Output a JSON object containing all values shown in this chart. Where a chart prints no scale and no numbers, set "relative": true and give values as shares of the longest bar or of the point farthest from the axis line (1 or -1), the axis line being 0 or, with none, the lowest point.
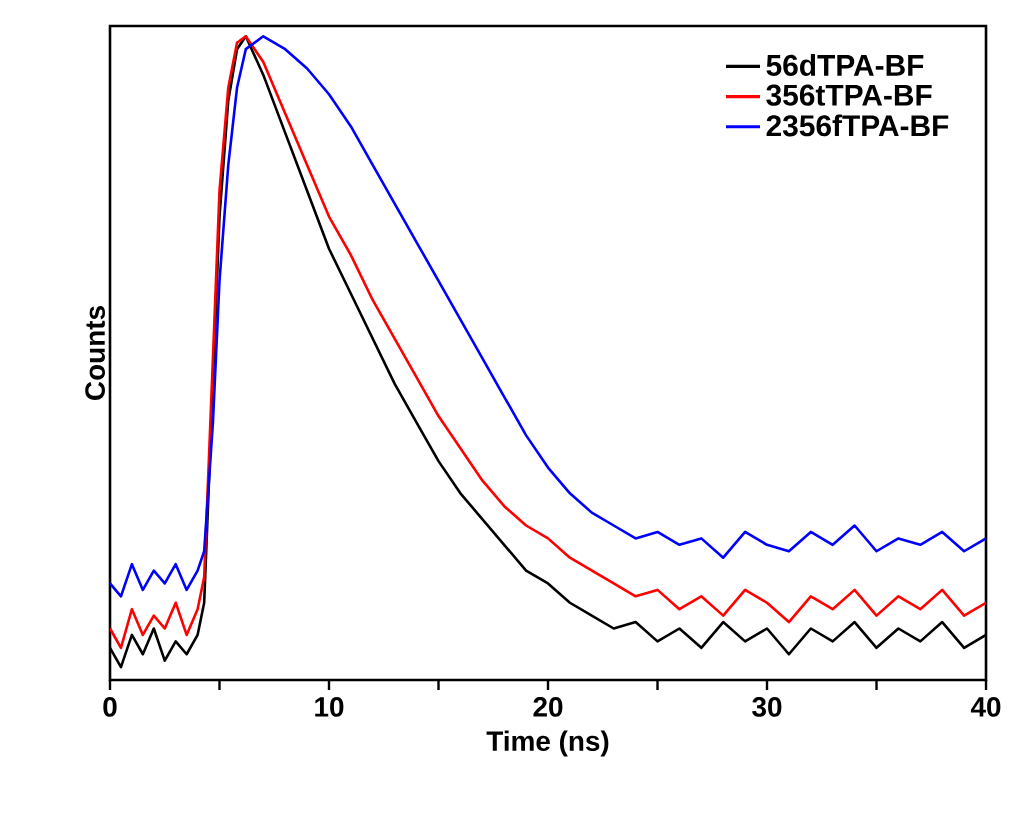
{
  "chart_data": {
    "type": "line",
    "xlabel": "Time (ns)",
    "ylabel": "Counts",
    "relative": true,
    "xlim": [
      0,
      40
    ],
    "xticks": [
      0,
      {
        "value": 5,
        "label": null
      },
      10,
      {
        "value": 15,
        "label": null
      },
      20,
      {
        "value": 25,
        "label": null
      },
      30,
      {
        "value": 35,
        "label": null
      },
      40
    ],
    "x": [
      0,
      0.5,
      1,
      1.5,
      2,
      2.5,
      3,
      3.5,
      4,
      4.3,
      4.7,
      5.0,
      5.4,
      5.8,
      6.2,
      7,
      8,
      9,
      10,
      11,
      12,
      13,
      14,
      15,
      16,
      17,
      18,
      19,
      20,
      21,
      22,
      23,
      24,
      25,
      26,
      27,
      28,
      29,
      30,
      31,
      32,
      33,
      34,
      35,
      36,
      37,
      38,
      39,
      40
    ],
    "legend": "top right",
    "marker": "none",
    "line_style": "solid",
    "grid": false,
    "series": [
      {
        "name": "56dTPA-BF",
        "color": "#000000",
        "values": [
          0.05,
          0.02,
          0.07,
          0.04,
          0.08,
          0.03,
          0.06,
          0.04,
          0.07,
          0.12,
          null,
          0.72,
          0.9,
          0.98,
          1.0,
          0.94,
          0.85,
          0.76,
          0.67,
          0.6,
          0.53,
          0.46,
          0.4,
          0.34,
          0.29,
          0.25,
          0.21,
          0.17,
          0.15,
          0.12,
          0.1,
          0.08,
          0.09,
          0.06,
          0.08,
          0.05,
          0.09,
          0.06,
          0.08,
          0.04,
          0.08,
          0.06,
          0.09,
          0.05,
          0.08,
          0.06,
          0.09,
          0.05,
          0.07
        ]
      },
      {
        "name": "356tTPA-BF",
        "color": "#ff0000",
        "values": [
          0.08,
          0.05,
          0.11,
          0.07,
          0.1,
          0.08,
          0.12,
          0.07,
          0.11,
          0.16,
          0.5,
          0.76,
          0.92,
          0.99,
          1.0,
          0.96,
          0.88,
          0.8,
          0.72,
          0.66,
          0.59,
          0.53,
          0.47,
          0.41,
          0.36,
          0.31,
          0.27,
          0.24,
          0.22,
          0.19,
          0.17,
          0.15,
          0.13,
          0.14,
          0.11,
          0.13,
          0.1,
          0.14,
          0.12,
          0.09,
          0.13,
          0.11,
          0.14,
          0.1,
          0.13,
          0.11,
          0.14,
          0.1,
          0.12
        ]
      },
      {
        "name": "2356fTPA-BF",
        "color": "#0000ff",
        "values": [
          0.15,
          0.13,
          0.18,
          0.14,
          0.17,
          0.15,
          0.18,
          0.14,
          0.17,
          0.2,
          0.4,
          0.62,
          0.8,
          0.92,
          0.98,
          1.0,
          0.98,
          0.95,
          0.91,
          0.86,
          0.8,
          0.74,
          0.68,
          0.62,
          0.56,
          0.5,
          0.44,
          0.38,
          0.33,
          0.29,
          0.26,
          0.24,
          0.22,
          0.23,
          0.21,
          0.22,
          0.19,
          0.23,
          0.21,
          0.2,
          0.23,
          0.21,
          0.24,
          0.2,
          0.22,
          0.21,
          0.23,
          0.2,
          0.22
        ]
      }
    ]
  }
}
